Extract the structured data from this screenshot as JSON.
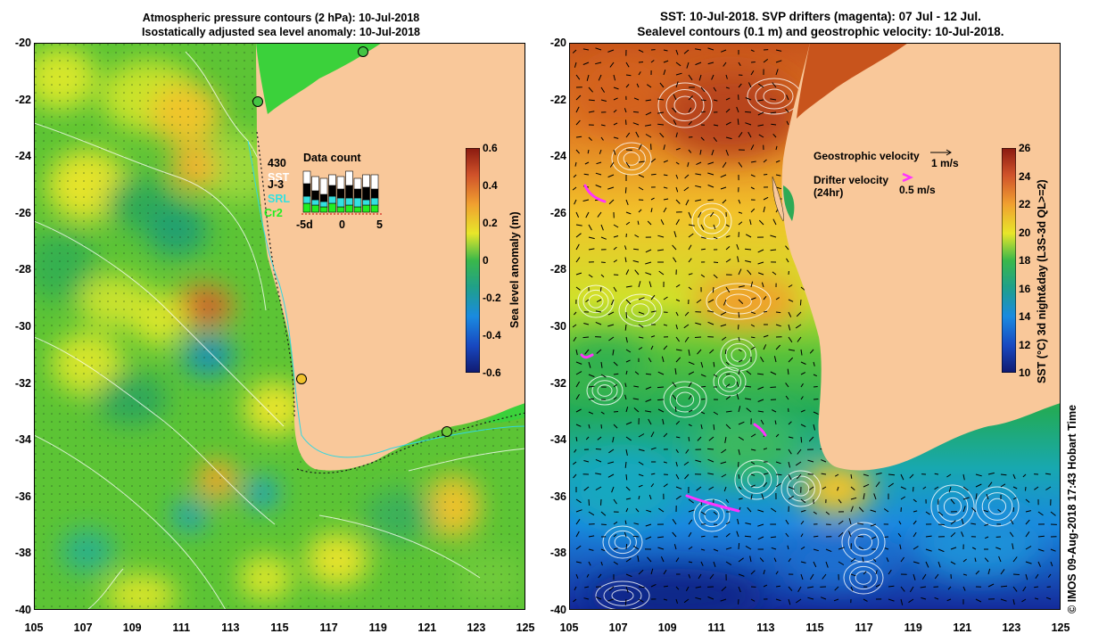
{
  "left_panel": {
    "title_line1": "Atmospheric pressure contours (2 hPa): 10-Jul-2018",
    "title_line2": "Isostatically adjusted sea level anomaly: 10-Jul-2018",
    "colorbar": {
      "title": "Sea level anomaly (m)",
      "ticks": [
        "0.6",
        "0.4",
        "0.2",
        "0",
        "-0.2",
        "-0.4",
        "-0.6"
      ]
    },
    "data_count": {
      "title": "Data count",
      "count": "430",
      "missions": [
        "SST",
        "J-3",
        "SRL",
        "Cr2"
      ],
      "axis_labels": [
        "-5d",
        "0",
        "5"
      ]
    }
  },
  "right_panel": {
    "title_line1": "SST: 10-Jul-2018. SVP drifters (magenta): 07 Jul - 12 Jul.",
    "title_line2": "Sealevel contours (0.1 m) and geostrophic velocity: 10-Jul-2018.",
    "legend": {
      "geostrophic_label": "Geostrophic velocity",
      "geostrophic_value": "1 m/s",
      "drifter_label": "Drifter velocity",
      "drifter_sub": "(24hr)",
      "drifter_value": "0.5 m/s"
    },
    "colorbar": {
      "title": "SST (°C) 3d night&day (L3S-3d QL>=2)",
      "ticks": [
        "26",
        "24",
        "22",
        "20",
        "18",
        "16",
        "14",
        "12",
        "10"
      ]
    }
  },
  "axes": {
    "lat_ticks": [
      "-20",
      "-22",
      "-24",
      "-26",
      "-28",
      "-30",
      "-32",
      "-34",
      "-36",
      "-38",
      "-40"
    ],
    "lon_ticks": [
      "105",
      "107",
      "109",
      "111",
      "113",
      "115",
      "117",
      "119",
      "121",
      "123",
      "125"
    ]
  },
  "credit": "© IMOS 09-Aug-2018 17:43 Hobart Time",
  "colors": {
    "land": "#f9c89a",
    "drifter": "#ff33ff",
    "contour": "#ffffff"
  }
}
